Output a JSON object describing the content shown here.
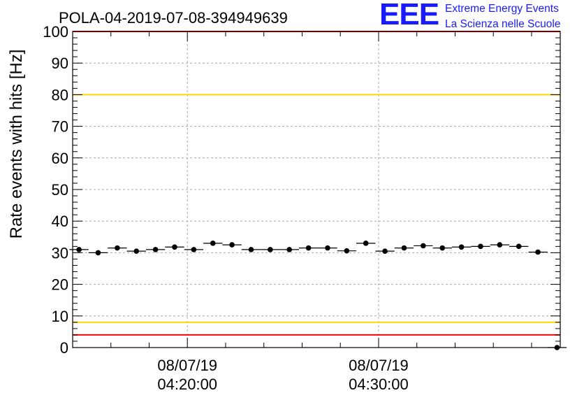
{
  "chart_data": {
    "type": "scatter",
    "title": "POLA-04-2019-07-08-394949639",
    "ylabel": "Rate events with hits [Hz]",
    "xlabel": "",
    "ylim": [
      0,
      100
    ],
    "yticks": [
      0,
      10,
      20,
      30,
      40,
      50,
      60,
      70,
      80,
      90,
      100
    ],
    "xlim": [
      "2019-07-08 04:14:00",
      "2019-07-08 04:39:30"
    ],
    "xticks": [
      {
        "time": "2019-07-08 04:20:00",
        "date": "08/07/19",
        "clock": "04:20:00"
      },
      {
        "time": "2019-07-08 04:30:00",
        "date": "08/07/19",
        "clock": "04:30:00"
      }
    ],
    "grid": true,
    "series": [
      {
        "marker_color": "#000000",
        "x": [
          "04:14:20",
          "04:15:20",
          "04:16:20",
          "04:17:20",
          "04:18:20",
          "04:19:20",
          "04:20:20",
          "04:21:20",
          "04:22:20",
          "04:23:20",
          "04:24:20",
          "04:25:20",
          "04:26:20",
          "04:27:20",
          "04:28:20",
          "04:29:20",
          "04:30:20",
          "04:31:20",
          "04:32:20",
          "04:33:20",
          "04:34:20",
          "04:35:20",
          "04:36:20",
          "04:37:20",
          "04:38:20",
          "04:39:20"
        ],
        "y": [
          31.0,
          30.0,
          31.5,
          30.5,
          31.0,
          31.8,
          31.0,
          33.0,
          32.5,
          31.0,
          31.0,
          31.0,
          31.5,
          31.5,
          30.6,
          33.0,
          30.5,
          31.5,
          32.2,
          31.5,
          31.8,
          32.0,
          32.5,
          32.0,
          30.2,
          0
        ]
      }
    ],
    "reference_lines": [
      {
        "y": 80,
        "color": "#ffd700"
      },
      {
        "y": 8,
        "color": "#ffd700"
      },
      {
        "y": 100,
        "color": "#ff0000"
      },
      {
        "y": 4,
        "color": "#ff0000"
      }
    ]
  },
  "logo": {
    "mark": "EEE",
    "line1": "Extreme Energy Events",
    "line2": "La Scienza nelle Scuole",
    "color": "#1a1aff"
  }
}
